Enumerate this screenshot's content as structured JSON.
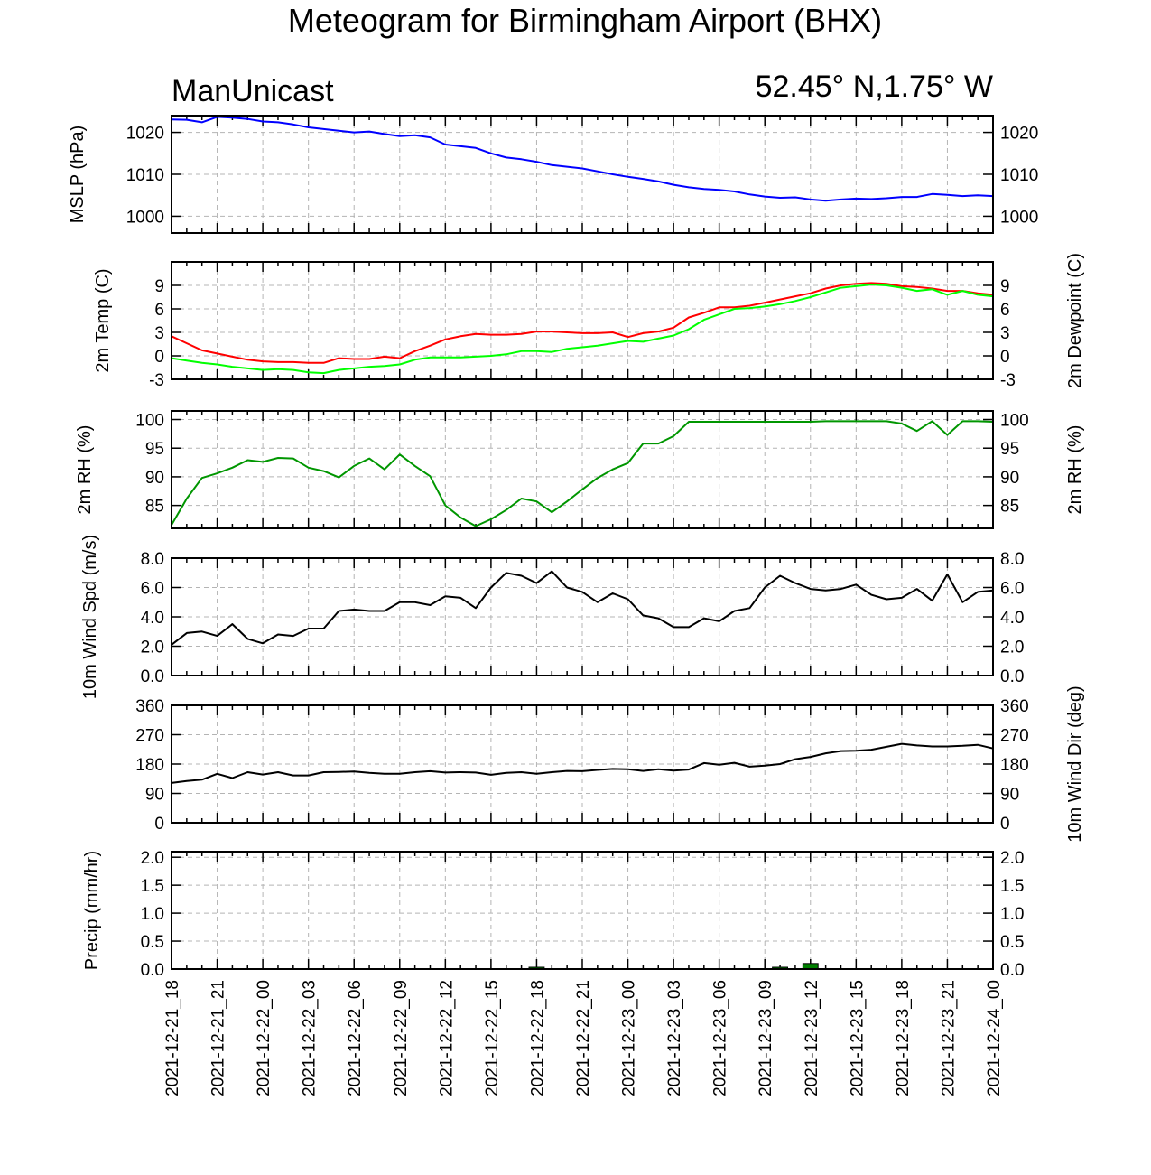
{
  "title": "Meteogram for Birmingham Airport (BHX)",
  "source_label": "ManUnicast",
  "location_label": "52.45° N,1.75° W",
  "colors": {
    "mslp": "#0000ff",
    "temp": "#ff0000",
    "dewpoint": "#00ff00",
    "rh": "#009600",
    "wind": "#000000",
    "precip": "#008000"
  },
  "chart_data": [
    {
      "type": "line",
      "panel": "mslp",
      "ylabel": "MSLP (hPa)",
      "ylim": [
        996,
        1024
      ],
      "yticks": [
        1000,
        1010,
        1020
      ],
      "ytick_labels": [
        "1000",
        "1010",
        "1020"
      ],
      "x_hours": [
        0,
        1,
        2,
        3,
        4,
        5,
        6,
        7,
        8,
        9,
        10,
        11,
        12,
        13,
        14,
        15,
        16,
        17,
        18,
        19,
        20,
        21,
        22,
        23,
        24,
        25,
        26,
        27,
        28,
        29,
        30,
        31,
        32,
        33,
        34,
        35,
        36,
        37,
        38,
        39,
        40,
        41,
        42,
        43,
        44,
        45,
        46,
        47,
        48,
        49,
        50,
        51,
        52,
        53,
        54
      ],
      "series": [
        {
          "color_key": "mslp",
          "values": [
            1023.1,
            1023.0,
            1022.4,
            1023.7,
            1023.5,
            1023.2,
            1022.6,
            1022.4,
            1021.9,
            1021.2,
            1020.8,
            1020.4,
            1020.0,
            1020.2,
            1019.6,
            1019.1,
            1019.3,
            1018.8,
            1017.1,
            1016.7,
            1016.3,
            1015.0,
            1014.0,
            1013.6,
            1013.0,
            1012.2,
            1011.8,
            1011.4,
            1010.7,
            1010.0,
            1009.4,
            1008.9,
            1008.3,
            1007.5,
            1006.9,
            1006.5,
            1006.3,
            1005.9,
            1005.2,
            1004.7,
            1004.4,
            1004.5,
            1004.0,
            1003.7,
            1004.0,
            1004.2,
            1004.1,
            1004.3,
            1004.6,
            1004.6,
            1005.3,
            1005.1,
            1004.8,
            1005.0,
            1004.8
          ]
        }
      ]
    },
    {
      "type": "line",
      "panel": "temp",
      "ylabel": "2m Temp (C)",
      "ylabel_right": "2m Dewpoint (C)",
      "ylim": [
        -3,
        12
      ],
      "yticks": [
        -3,
        0,
        3,
        6,
        9
      ],
      "ytick_labels": [
        "-3",
        "0",
        "3",
        "6",
        "9"
      ],
      "x_hours": [
        0,
        1,
        2,
        3,
        4,
        5,
        6,
        7,
        8,
        9,
        10,
        11,
        12,
        13,
        14,
        15,
        16,
        17,
        18,
        19,
        20,
        21,
        22,
        23,
        24,
        25,
        26,
        27,
        28,
        29,
        30,
        31,
        32,
        33,
        34,
        35,
        36,
        37,
        38,
        39,
        40,
        41,
        42,
        43,
        44,
        45,
        46,
        47,
        48,
        49,
        50,
        51,
        52,
        53,
        54
      ],
      "series": [
        {
          "color_key": "temp",
          "values": [
            2.5,
            1.6,
            0.7,
            0.3,
            -0.1,
            -0.5,
            -0.7,
            -0.8,
            -0.8,
            -0.9,
            -0.9,
            -0.3,
            -0.4,
            -0.4,
            -0.1,
            -0.3,
            0.6,
            1.3,
            2.1,
            2.5,
            2.8,
            2.7,
            2.7,
            2.8,
            3.1,
            3.1,
            3.0,
            2.9,
            2.9,
            3.0,
            2.4,
            2.9,
            3.1,
            3.6,
            4.9,
            5.5,
            6.2,
            6.2,
            6.4,
            6.8,
            7.2,
            7.6,
            8.0,
            8.6,
            9.0,
            9.2,
            9.3,
            9.2,
            8.9,
            8.8,
            8.6,
            8.3,
            8.3,
            8.0,
            7.8
          ]
        },
        {
          "color_key": "dewpoint",
          "values": [
            -0.3,
            -0.6,
            -0.9,
            -1.1,
            -1.4,
            -1.6,
            -1.8,
            -1.7,
            -1.8,
            -2.1,
            -2.2,
            -1.8,
            -1.6,
            -1.4,
            -1.3,
            -1.1,
            -0.5,
            -0.2,
            -0.2,
            -0.2,
            -0.1,
            0.0,
            0.2,
            0.6,
            0.6,
            0.5,
            0.9,
            1.1,
            1.3,
            1.6,
            1.9,
            1.8,
            2.2,
            2.6,
            3.4,
            4.6,
            5.3,
            6.0,
            6.1,
            6.3,
            6.6,
            7.0,
            7.5,
            8.1,
            8.7,
            8.9,
            9.1,
            9.0,
            8.7,
            8.3,
            8.5,
            7.8,
            8.3,
            7.8,
            7.6
          ]
        }
      ]
    },
    {
      "type": "line",
      "panel": "rh",
      "ylabel": "2m RH (%)",
      "ylim": [
        81,
        101.5
      ],
      "yticks": [
        85,
        90,
        95,
        100
      ],
      "ytick_labels": [
        "85",
        "90",
        "95",
        "100"
      ],
      "x_hours": [
        0,
        1,
        2,
        3,
        4,
        5,
        6,
        7,
        8,
        9,
        10,
        11,
        12,
        13,
        14,
        15,
        16,
        17,
        18,
        19,
        20,
        21,
        22,
        23,
        24,
        25,
        26,
        27,
        28,
        29,
        30,
        31,
        32,
        33,
        34,
        35,
        36,
        37,
        38,
        39,
        40,
        41,
        42,
        43,
        44,
        45,
        46,
        47,
        48,
        49,
        50,
        51,
        52,
        53,
        54
      ],
      "series": [
        {
          "color_key": "rh",
          "values": [
            81.6,
            86.2,
            89.8,
            90.6,
            91.6,
            92.9,
            92.6,
            93.3,
            93.2,
            91.6,
            91.0,
            89.9,
            91.9,
            93.2,
            91.3,
            93.9,
            91.9,
            90.1,
            85.0,
            82.9,
            81.4,
            82.6,
            84.2,
            86.2,
            85.7,
            83.8,
            85.7,
            87.8,
            89.8,
            91.3,
            92.4,
            95.8,
            95.8,
            97.1,
            99.6,
            99.6,
            99.6,
            99.6,
            99.6,
            99.6,
            99.6,
            99.6,
            99.6,
            99.7,
            99.7,
            99.7,
            99.7,
            99.7,
            99.3,
            98.0,
            99.7,
            97.3,
            99.7,
            99.7,
            99.6
          ]
        }
      ]
    },
    {
      "type": "line",
      "panel": "wind_speed",
      "ylabel": "10m Wind Spd (m/s)",
      "ylim": [
        0,
        8
      ],
      "yticks": [
        0,
        2,
        4,
        6,
        8
      ],
      "ytick_labels": [
        "0.0",
        "2.0",
        "4.0",
        "6.0",
        "8.0"
      ],
      "x_hours": [
        0,
        1,
        2,
        3,
        4,
        5,
        6,
        7,
        8,
        9,
        10,
        11,
        12,
        13,
        14,
        15,
        16,
        17,
        18,
        19,
        20,
        21,
        22,
        23,
        24,
        25,
        26,
        27,
        28,
        29,
        30,
        31,
        32,
        33,
        34,
        35,
        36,
        37,
        38,
        39,
        40,
        41,
        42,
        43,
        44,
        45,
        46,
        47,
        48,
        49,
        50,
        51,
        52,
        53,
        54
      ],
      "series": [
        {
          "color_key": "wind",
          "values": [
            2.1,
            2.9,
            3.0,
            2.7,
            3.5,
            2.5,
            2.2,
            2.8,
            2.7,
            3.2,
            3.2,
            4.4,
            4.5,
            4.4,
            4.4,
            5.0,
            5.0,
            4.8,
            5.4,
            5.3,
            4.6,
            6.0,
            7.0,
            6.8,
            6.3,
            7.1,
            6.0,
            5.7,
            5.0,
            5.6,
            5.2,
            4.1,
            3.9,
            3.3,
            3.3,
            3.9,
            3.7,
            4.4,
            4.6,
            6.0,
            6.8,
            6.3,
            5.9,
            5.8,
            5.9,
            6.2,
            5.5,
            5.2,
            5.3,
            5.9,
            5.1,
            6.9,
            5.0,
            5.7,
            5.8
          ]
        }
      ]
    },
    {
      "type": "line",
      "panel": "wind_dir",
      "ylabel": "10m Wind Dir (deg)",
      "ylim": [
        0,
        360
      ],
      "yticks": [
        0,
        90,
        180,
        270,
        360
      ],
      "ytick_labels": [
        "0",
        "90",
        "180",
        "270",
        "360"
      ],
      "x_hours": [
        0,
        1,
        2,
        3,
        4,
        5,
        6,
        7,
        8,
        9,
        10,
        11,
        12,
        13,
        14,
        15,
        16,
        17,
        18,
        19,
        20,
        21,
        22,
        23,
        24,
        25,
        26,
        27,
        28,
        29,
        30,
        31,
        32,
        33,
        34,
        35,
        36,
        37,
        38,
        39,
        40,
        41,
        42,
        43,
        44,
        45,
        46,
        47,
        48,
        49,
        50,
        51,
        52,
        53,
        54
      ],
      "series": [
        {
          "color_key": "wind",
          "values": [
            122,
            128,
            132,
            150,
            137,
            155,
            148,
            155,
            145,
            145,
            155,
            156,
            157,
            153,
            150,
            150,
            155,
            158,
            154,
            155,
            154,
            147,
            153,
            155,
            150,
            155,
            159,
            158,
            162,
            165,
            164,
            159,
            164,
            160,
            163,
            183,
            178,
            184,
            172,
            175,
            180,
            195,
            202,
            213,
            220,
            221,
            224,
            233,
            242,
            237,
            234,
            234,
            236,
            239,
            228
          ]
        }
      ]
    },
    {
      "type": "bar",
      "panel": "precip",
      "ylabel": "Precip (mm/hr)",
      "ylim": [
        0,
        2.1
      ],
      "yticks": [
        0,
        0.5,
        1.0,
        1.5,
        2.0
      ],
      "ytick_labels": [
        "0.0",
        "0.5",
        "1.0",
        "1.5",
        "2.0"
      ],
      "x_hours": [
        24,
        40,
        42
      ],
      "series": [
        {
          "color_key": "precip",
          "values": [
            0.03,
            0.01,
            0.1
          ]
        }
      ]
    }
  ],
  "time_axis": {
    "hours": [
      0,
      3,
      6,
      9,
      12,
      15,
      18,
      21,
      24,
      27,
      30,
      33,
      36,
      39,
      42,
      45,
      48,
      51,
      54
    ],
    "labels": [
      "2021-12-21_18",
      "2021-12-21_21",
      "2021-12-22_00",
      "2021-12-22_03",
      "2021-12-22_06",
      "2021-12-22_09",
      "2021-12-22_12",
      "2021-12-22_15",
      "2021-12-22_18",
      "2021-12-22_21",
      "2021-12-23_00",
      "2021-12-23_03",
      "2021-12-23_06",
      "2021-12-23_09",
      "2021-12-23_12",
      "2021-12-23_15",
      "2021-12-23_18",
      "2021-12-23_21",
      "2021-12-24_00"
    ]
  }
}
